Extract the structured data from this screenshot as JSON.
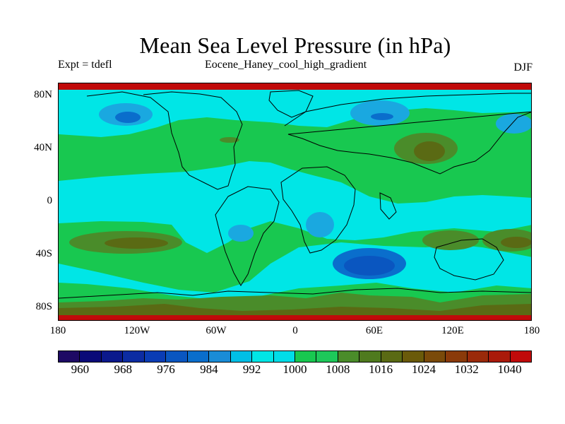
{
  "title": "Mean Sea Level Pressure (in hPa)",
  "subtitle_left": "Expt = tdefl",
  "subtitle_center": "Eocene_Haney_cool_high_gradient",
  "subtitle_right": "DJF",
  "lat_labels": [
    "80N",
    "40N",
    "0",
    "40S",
    "80S"
  ],
  "lon_labels": [
    "180",
    "120W",
    "60W",
    "0",
    "60E",
    "120E",
    "180"
  ],
  "colorbar": {
    "labels": [
      "960",
      "968",
      "976",
      "984",
      "992",
      "1000",
      "1008",
      "1016",
      "1024",
      "1032",
      "1040"
    ],
    "colors": [
      "#1e0a64",
      "#0a0a78",
      "#0b198c",
      "#0c2ca2",
      "#0a3cb4",
      "#0a56c0",
      "#0a6ecc",
      "#1a8cd6",
      "#00bfe6",
      "#00e6e6",
      "#00dde8",
      "#18c850",
      "#1ec85a",
      "#4a8c2a",
      "#4f7a1e",
      "#5a6a14",
      "#6a5a0a",
      "#7a4a0a",
      "#8a3a0a",
      "#9a2a0a",
      "#aa1a0a",
      "#c00a0a"
    ]
  },
  "map_colors": {
    "background": "#18c850",
    "cyan": "#00e6e6",
    "light_blue": "#1aa8e0",
    "blue": "#0a6ecc",
    "dark_blue": "#0a56c0",
    "olive": "#4a8c2a",
    "brown": "#5a6a14",
    "dark_brown": "#6a5a0a",
    "red_band": "#c00a0a",
    "outline": "#000000"
  }
}
